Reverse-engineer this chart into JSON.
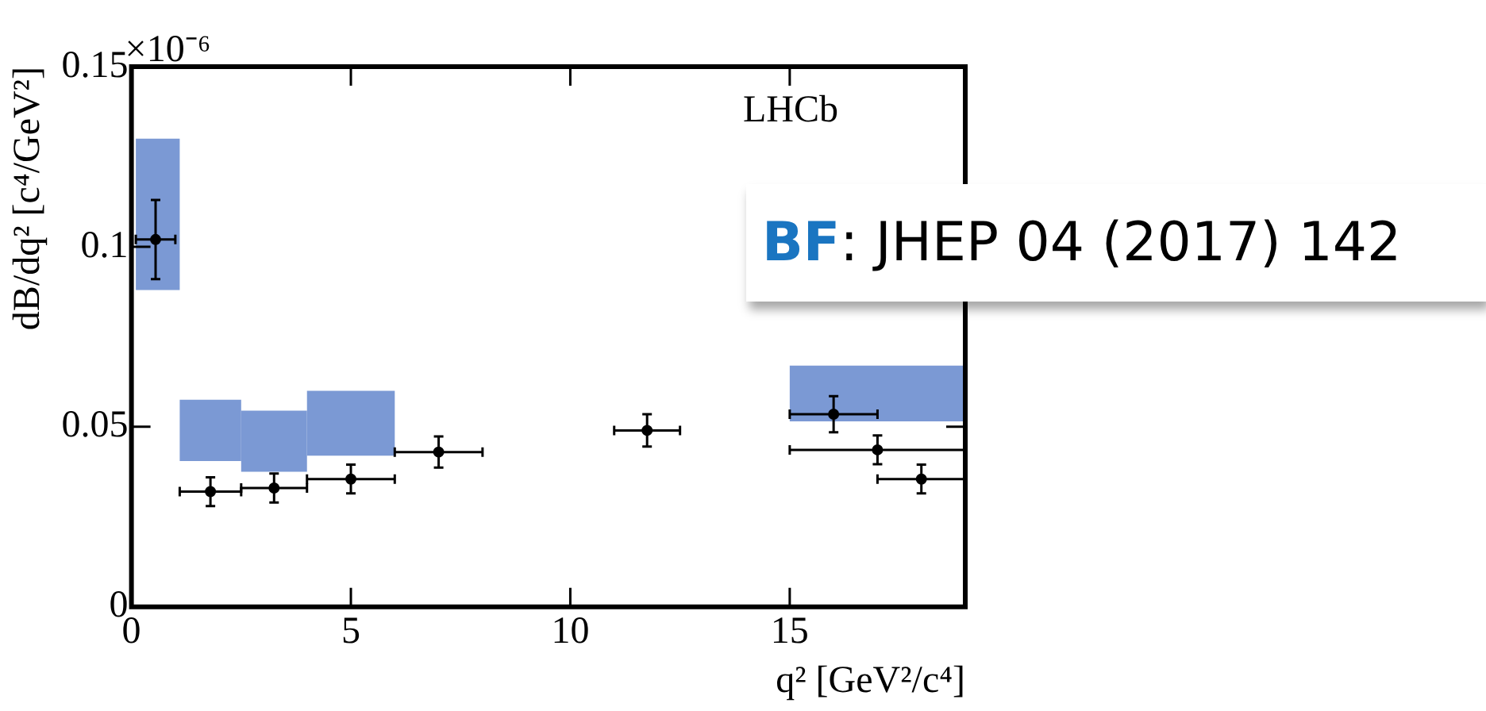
{
  "chart_data": {
    "type": "scatter",
    "xlabel": "q² [GeV²/c⁴]",
    "ylabel": "dB/dq² [c⁴/GeV²]",
    "xlim": [
      0,
      19
    ],
    "xticks": [
      0,
      5,
      10,
      15
    ],
    "ylim": [
      0,
      0.15
    ],
    "yticks": [
      0,
      0.05,
      0.1,
      0.15
    ],
    "grid": false,
    "legend": false,
    "marker": "circle",
    "annotations": [
      "×10⁻⁶",
      "LHCb",
      "BF: JHEP 04 (2017) 142"
    ],
    "series": [
      {
        "type": "histogram",
        "color": "#7b99d4",
        "bins": [
          0.1,
          1.1,
          2.5,
          4,
          6,
          15,
          19
        ],
        "base": [
          0.088,
          0.0405,
          0.0375,
          0.042,
          null,
          0.0515
        ],
        "values": [
          0.042,
          0.017,
          0.017,
          0.018,
          null,
          0.0155
        ]
      },
      {
        "color": "#000000",
        "x": [
          0.55,
          1.8,
          3.25,
          5,
          7,
          11.75,
          16,
          17,
          18
        ],
        "values": [
          0.102,
          0.032,
          0.033,
          0.0355,
          0.043,
          0.049,
          0.0535,
          0.0436,
          0.0355
        ],
        "errors": [
          0.011,
          0.004,
          0.004,
          0.004,
          0.0043,
          0.0045,
          0.005,
          0.004,
          0.004
        ],
        "xerrors": [
          0.45,
          0.7,
          0.75,
          1,
          1,
          0.75,
          1,
          2,
          1
        ]
      }
    ]
  }
}
